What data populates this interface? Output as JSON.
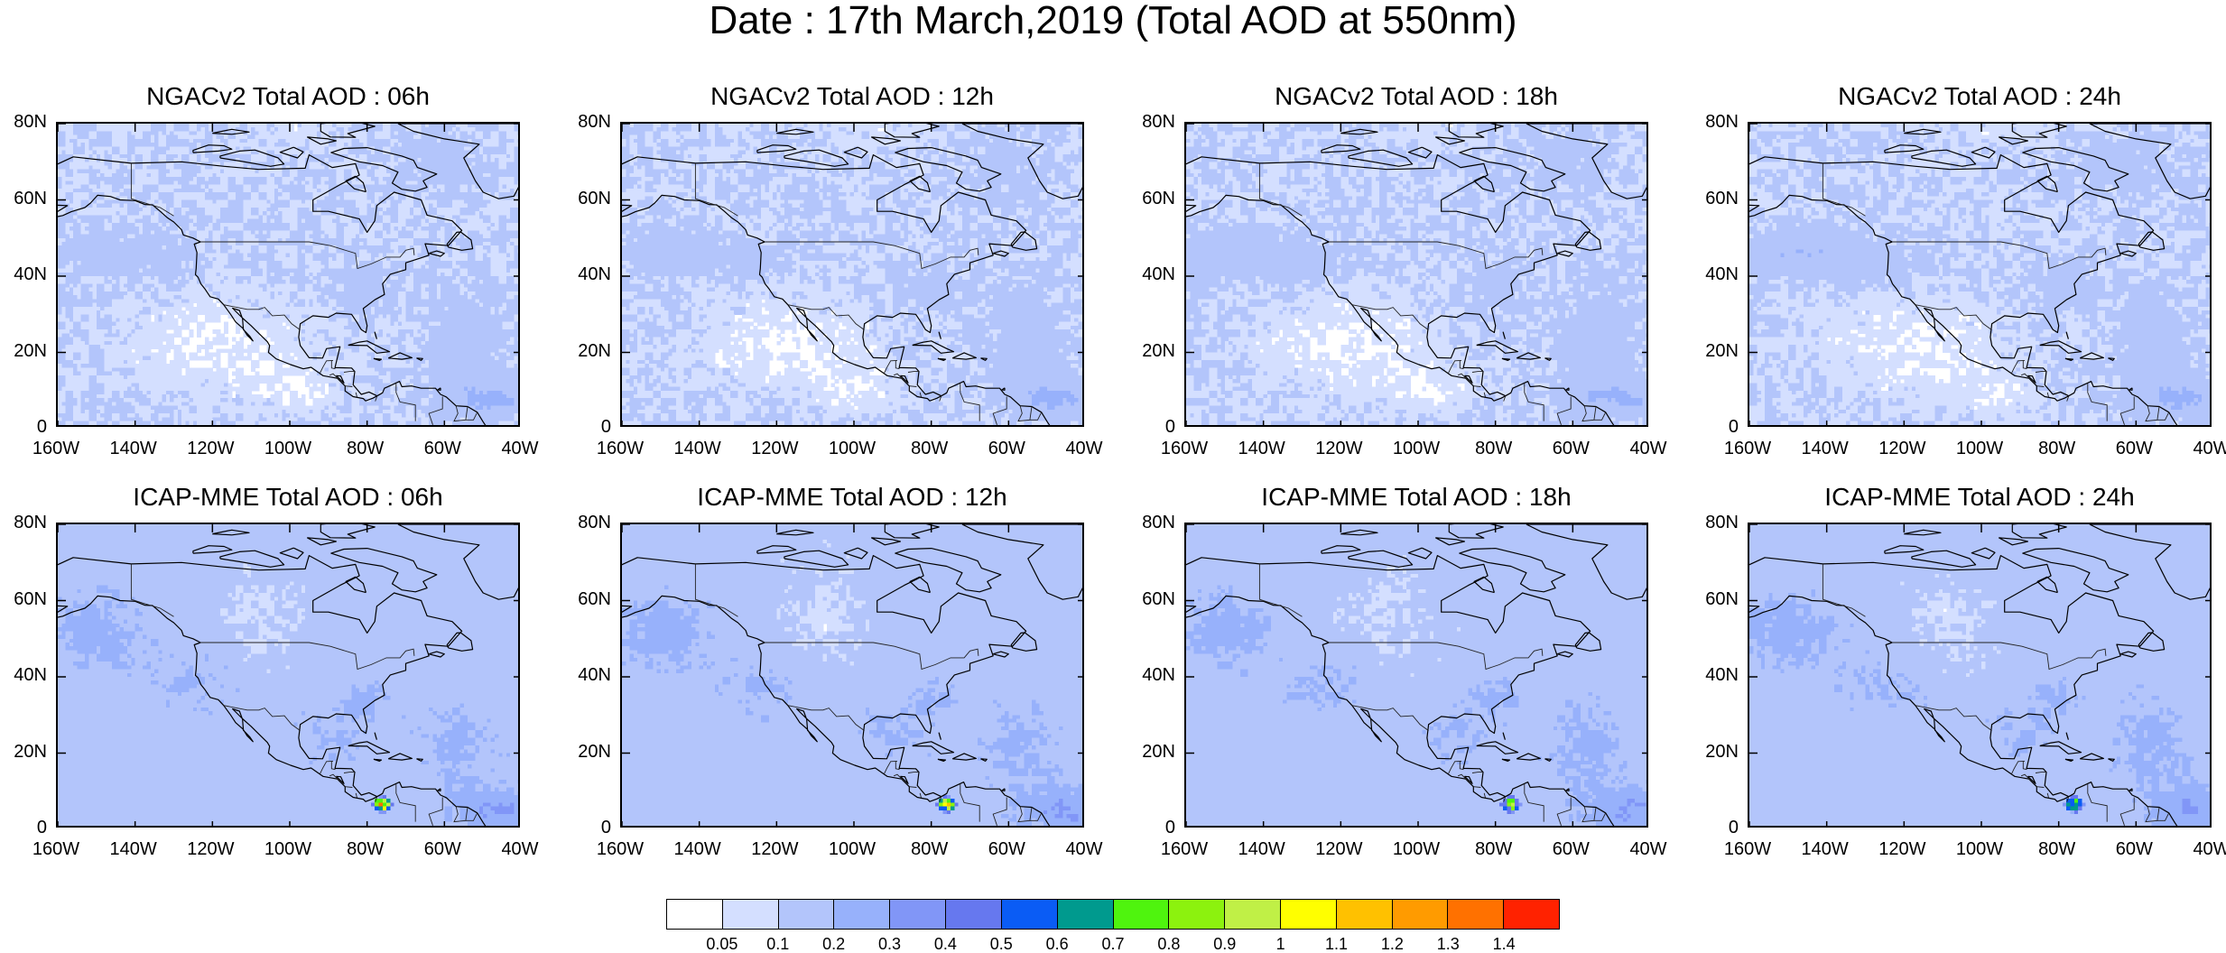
{
  "title": "Date : 17th March,2019 (Total AOD at 550nm)",
  "panels": [
    {
      "title": "NGACv2 Total AOD : 06h",
      "model": "ngac",
      "hour": 6
    },
    {
      "title": "NGACv2 Total AOD : 12h",
      "model": "ngac",
      "hour": 12
    },
    {
      "title": "NGACv2 Total AOD : 18h",
      "model": "ngac",
      "hour": 18
    },
    {
      "title": "NGACv2 Total AOD : 24h",
      "model": "ngac",
      "hour": 24
    },
    {
      "title": "ICAP-MME Total AOD : 06h",
      "model": "icap",
      "hour": 6
    },
    {
      "title": "ICAP-MME Total AOD : 12h",
      "model": "icap",
      "hour": 12
    },
    {
      "title": "ICAP-MME Total AOD : 18h",
      "model": "icap",
      "hour": 18
    },
    {
      "title": "ICAP-MME Total AOD : 24h",
      "model": "icap",
      "hour": 24
    }
  ],
  "axes": {
    "lat_ticks": [
      "80N",
      "60N",
      "40N",
      "20N",
      "0"
    ],
    "lon_ticks": [
      "160W",
      "140W",
      "120W",
      "100W",
      "80W",
      "60W",
      "40W"
    ],
    "lat_range": [
      0,
      80
    ],
    "lon_range": [
      -160,
      -40
    ]
  },
  "colorbar": {
    "colors": [
      "#ffffff",
      "#d4dfff",
      "#b3c5fb",
      "#97b1fb",
      "#8196f7",
      "#6678ef",
      "#0a5cf5",
      "#009a8e",
      "#4ff40e",
      "#8cf20e",
      "#c0f046",
      "#ffff00",
      "#ffc100",
      "#ff9b00",
      "#ff7100",
      "#ff2200"
    ],
    "labels": [
      "0.05",
      "0.1",
      "0.2",
      "0.3",
      "0.4",
      "0.5",
      "0.6",
      "0.7",
      "0.8",
      "0.9",
      "1",
      "1.1",
      "1.2",
      "1.3",
      "1.4"
    ]
  }
}
